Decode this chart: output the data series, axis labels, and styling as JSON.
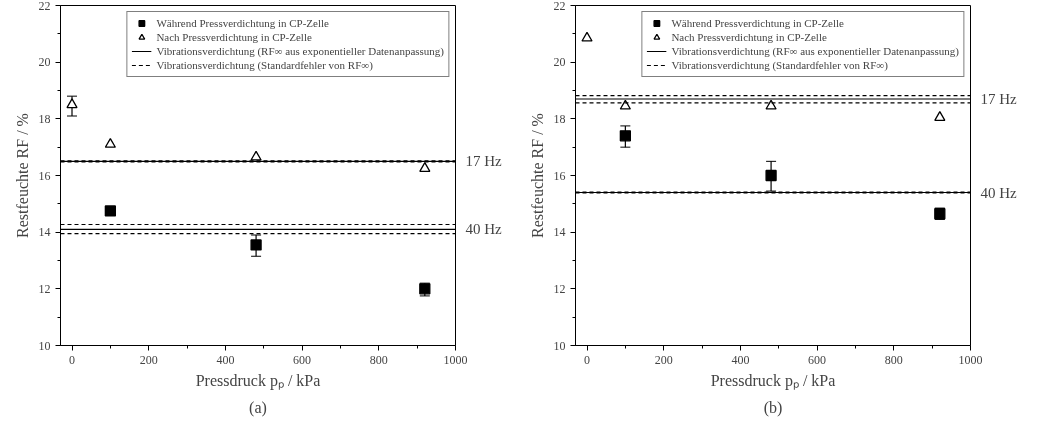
{
  "chart_data": [
    {
      "type": "scatter",
      "xlabel": "Pressdruck pₚ / kPa",
      "ylabel": "Restfeuchte RF / %",
      "xlim": [
        -30,
        1000
      ],
      "ylim": [
        10,
        22
      ],
      "xticks": [
        0,
        200,
        400,
        600,
        800,
        1000
      ],
      "yticks": [
        10,
        12,
        14,
        16,
        18,
        20,
        22
      ],
      "legend": "top right",
      "annotations": [
        "(a)",
        "17 Hz",
        "40 Hz"
      ],
      "series": [
        {
          "name": "Während Pressverdichtung in CP-Zelle",
          "marker": "square",
          "color": "#000000",
          "x": [
            100,
            480,
            920
          ],
          "values": [
            14.75,
            13.55,
            12.0
          ],
          "errors": [
            null,
            [
              13.15,
              13.9
            ],
            [
              11.75,
              12.2
            ]
          ]
        },
        {
          "name": "Nach Pressverdichtung in CP-Zelle",
          "marker": "triangle",
          "color": "#000000",
          "x": [
            0,
            100,
            480,
            920
          ],
          "values": [
            18.5,
            17.1,
            16.65,
            16.25
          ],
          "errors": [
            [
              18.1,
              18.8
            ],
            null,
            null,
            null
          ]
        },
        {
          "name": "Vibrationsverdichtung (RF∞ aus exponentieller Datenanpassung)",
          "type": "line",
          "line_style": "solid",
          "color": "#000000",
          "x": [
            -30,
            1000
          ],
          "values": [
            16.5,
            16.5
          ]
        },
        {
          "name": "Vibrationsverdichtung (Standardfehler von RF∞)",
          "type": "line",
          "line_style": "dashed",
          "color": "#000000",
          "x": [
            -30,
            1000
          ],
          "values": [
            16.52,
            16.52
          ]
        },
        {
          "type": "line",
          "line_style": "dashed",
          "color": "#000000",
          "x": [
            -30,
            1000
          ],
          "values": [
            16.48,
            16.48
          ]
        },
        {
          "type": "line",
          "line_style": "solid",
          "color": "#000000",
          "x": [
            -30,
            1000
          ],
          "values": [
            14.1,
            14.1
          ]
        },
        {
          "type": "line",
          "line_style": "dashed",
          "color": "#000000",
          "x": [
            -30,
            1000
          ],
          "values": [
            14.27,
            14.27
          ]
        },
        {
          "type": "line",
          "line_style": "dashed",
          "color": "#000000",
          "x": [
            -30,
            1000
          ],
          "values": [
            13.95,
            13.95
          ]
        }
      ]
    },
    {
      "type": "scatter",
      "xlabel": "Pressdruck pₚ / kPa",
      "ylabel": "Restfeuchte RF / %",
      "xlim": [
        -30,
        1000
      ],
      "ylim": [
        10,
        22
      ],
      "xticks": [
        0,
        200,
        400,
        600,
        800,
        1000
      ],
      "yticks": [
        10,
        12,
        14,
        16,
        18,
        20,
        22
      ],
      "legend": "top right",
      "annotations": [
        "(b)",
        "17 Hz",
        "40 Hz"
      ],
      "series": [
        {
          "name": "Während Pressverdichtung in CP-Zelle",
          "marker": "square",
          "color": "#000000",
          "x": [
            100,
            480,
            920
          ],
          "values": [
            17.4,
            16.0,
            14.65
          ],
          "errors": [
            [
              17.0,
              17.75
            ],
            [
              15.45,
              16.5
            ],
            [
              14.45,
              14.85
            ]
          ]
        },
        {
          "name": "Nach Pressverdichtung in CP-Zelle",
          "marker": "triangle",
          "color": "#000000",
          "x": [
            0,
            100,
            480,
            920
          ],
          "values": [
            20.85,
            18.45,
            18.45,
            18.05
          ]
        },
        {
          "name": "Vibrationsverdichtung (RF∞ aus exponentieller Datenanpassung)",
          "type": "line",
          "line_style": "solid",
          "color": "#000000",
          "x": [
            -30,
            1000
          ],
          "values": [
            18.7,
            18.7
          ]
        },
        {
          "name": "Vibrationsverdichtung (Standardfehler von RF∞)",
          "type": "line",
          "line_style": "dashed",
          "color": "#000000",
          "x": [
            -30,
            1000
          ],
          "values": [
            18.82,
            18.82
          ]
        },
        {
          "type": "line",
          "line_style": "dashed",
          "color": "#000000",
          "x": [
            -30,
            1000
          ],
          "values": [
            18.56,
            18.56
          ]
        },
        {
          "type": "line",
          "line_style": "solid",
          "color": "#000000",
          "x": [
            -30,
            1000
          ],
          "values": [
            15.4,
            15.4
          ]
        },
        {
          "type": "line",
          "line_style": "dashed",
          "color": "#000000",
          "x": [
            -30,
            1000
          ],
          "values": [
            15.41,
            15.41
          ]
        },
        {
          "type": "line",
          "line_style": "dashed",
          "color": "#000000",
          "x": [
            -30,
            1000
          ],
          "values": [
            15.39,
            15.39
          ]
        }
      ]
    }
  ]
}
